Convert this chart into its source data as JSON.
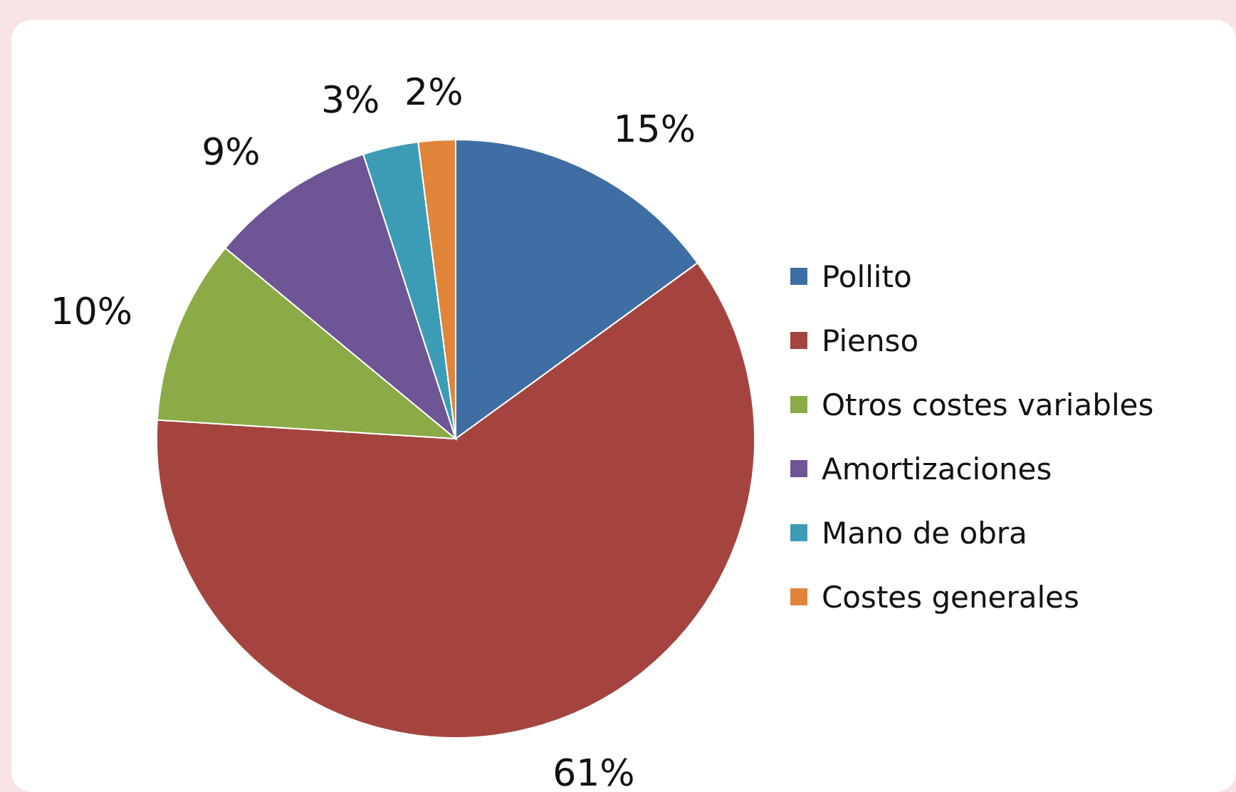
{
  "chart_data": {
    "type": "pie",
    "categories": [
      "Pollito",
      "Pienso",
      "Otros costes variables",
      "Amortizaciones",
      "Mano de obra",
      "Costes generales"
    ],
    "values": [
      15,
      61,
      10,
      9,
      3,
      2
    ],
    "colors": [
      "#3f6ea5",
      "#a5443f",
      "#8aab45",
      "#6e5596",
      "#3d9cb5",
      "#e0843a"
    ],
    "value_labels": [
      "15%",
      "61%",
      "10%",
      "9%",
      "3%",
      "2%"
    ],
    "legend": "right"
  }
}
